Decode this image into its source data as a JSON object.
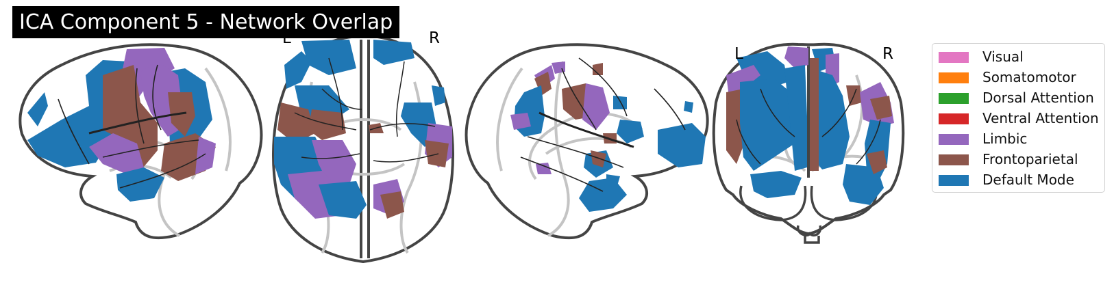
{
  "figure": {
    "title": "ICA Component 5 - Network Overlap",
    "orientation": {
      "axial_left": "L",
      "axial_right": "R",
      "coronal_left": "L",
      "coronal_right": "R"
    }
  },
  "colors": {
    "Visual": "#e377c2",
    "Somatomotor": "#ff7f0e",
    "Dorsal Attention": "#2ca02c",
    "Ventral Attention": "#d62728",
    "Limbic": "#9467bd",
    "Frontoparietal": "#8c564b",
    "Default Mode": "#1f77b4",
    "outline": "#444444",
    "gray_structures": "#c4c4c4"
  },
  "legend": [
    {
      "label": "Visual",
      "color": "#e377c2"
    },
    {
      "label": "Somatomotor",
      "color": "#ff7f0e"
    },
    {
      "label": "Dorsal Attention",
      "color": "#2ca02c"
    },
    {
      "label": "Ventral Attention",
      "color": "#d62728"
    },
    {
      "label": "Limbic",
      "color": "#9467bd"
    },
    {
      "label": "Frontoparietal",
      "color": "#8c564b"
    },
    {
      "label": "Default Mode",
      "color": "#1f77b4"
    }
  ]
}
